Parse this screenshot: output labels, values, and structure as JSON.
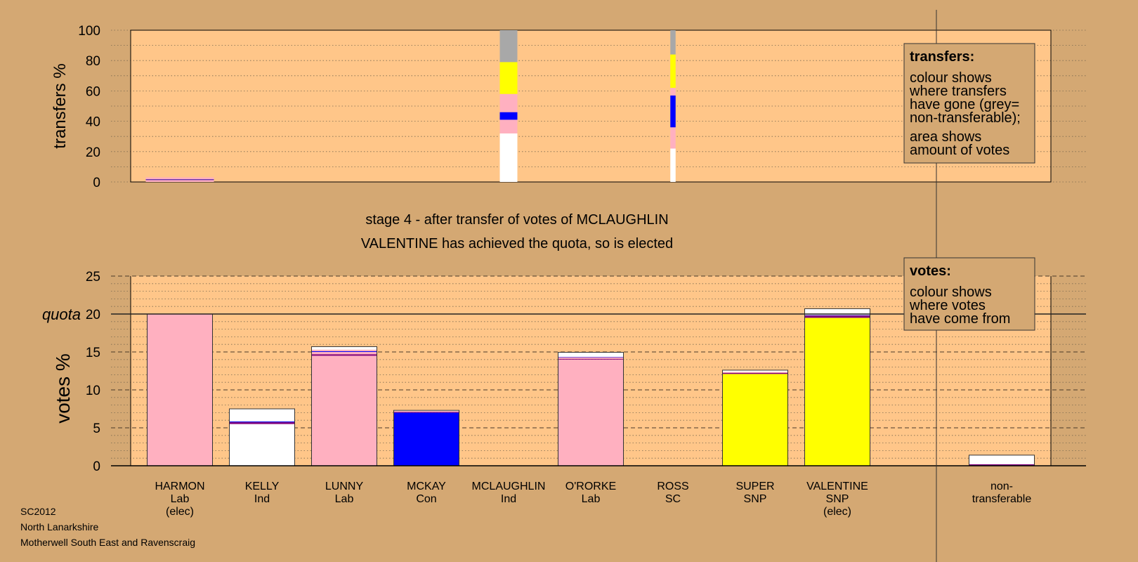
{
  "colors": {
    "background": "#D4A873",
    "plot_background": "#FFC689",
    "Lab": "#FFB0C0",
    "Ind": "#FFFFFF",
    "Con": "#0000FF",
    "SNP": "#FFFF00",
    "SC": "#800080",
    "non_transferable": "#A8A8A8"
  },
  "footer": {
    "line1": "SC2012",
    "line2": "North Lanarkshire",
    "line3": "Motherwell South East and Ravenscraig"
  },
  "stage": {
    "title": "stage 4 - after transfer of votes of MCLAUGHLIN",
    "subtitle": "VALENTINE has achieved the quota, so is elected"
  },
  "legend_transfers": {
    "heading": "transfers:",
    "lines1": [
      "colour shows",
      "where transfers",
      "have gone (grey=",
      "non-transferable);"
    ],
    "lines2": [
      "area shows",
      "amount of votes"
    ]
  },
  "legend_votes": {
    "heading": "votes:",
    "lines1": [
      "colour shows",
      "where votes",
      "have come from"
    ]
  },
  "chart_data": [
    {
      "type": "bar",
      "name": "transfers",
      "ylabel": "transfers %",
      "ylim": [
        0,
        100
      ],
      "yticks": [
        0,
        20,
        40,
        60,
        80,
        100
      ],
      "grid": "dotted",
      "columns": [
        {
          "candidate": "HARMON",
          "width": 2,
          "segments": [
            {
              "party": "Lab",
              "from": 0,
              "to": 3
            }
          ]
        },
        {
          "candidate": "MCLAUGHLIN",
          "width": 1,
          "segments": [
            {
              "party": "Ind",
              "from": 0,
              "to": 32
            },
            {
              "party": "Lab",
              "from": 32,
              "to": 41
            },
            {
              "party": "Con",
              "from": 41,
              "to": 46
            },
            {
              "party": "Lab",
              "from": 46,
              "to": 58
            },
            {
              "party": "SNP",
              "from": 58,
              "to": 79
            },
            {
              "party": "non_transferable",
              "from": 79,
              "to": 100
            }
          ]
        },
        {
          "candidate": "ROSS",
          "width": 0.3,
          "segments": [
            {
              "party": "Ind",
              "from": 0,
              "to": 22
            },
            {
              "party": "Lab",
              "from": 22,
              "to": 36
            },
            {
              "party": "Con",
              "from": 36,
              "to": 57
            },
            {
              "party": "Lab",
              "from": 57,
              "to": 62
            },
            {
              "party": "SNP",
              "from": 62,
              "to": 84
            },
            {
              "party": "non_transferable",
              "from": 84,
              "to": 100
            }
          ]
        }
      ]
    },
    {
      "type": "bar",
      "name": "votes",
      "ylabel": "votes %",
      "ylim": [
        0,
        25
      ],
      "yticks": [
        0,
        5,
        10,
        15,
        20,
        25
      ],
      "quota_label": "quota",
      "quota": 20,
      "grid": "dotted",
      "categories": [
        {
          "name": "HARMON",
          "party": "Lab",
          "elected": "(elec)"
        },
        {
          "name": "KELLY",
          "party": "Ind",
          "elected": ""
        },
        {
          "name": "LUNNY",
          "party": "Lab",
          "elected": ""
        },
        {
          "name": "MCKAY",
          "party": "Con",
          "elected": ""
        },
        {
          "name": "MCLAUGHLIN",
          "party": "Ind",
          "elected": ""
        },
        {
          "name": "O'RORKE",
          "party": "Lab",
          "elected": ""
        },
        {
          "name": "ROSS",
          "party": "SC",
          "elected": ""
        },
        {
          "name": "SUPER",
          "party": "SNP",
          "elected": ""
        },
        {
          "name": "VALENTINE",
          "party": "SNP",
          "elected": "(elec)"
        }
      ],
      "nontransferable_label": [
        "non-",
        "transferable"
      ],
      "bars": [
        [
          {
            "party": "Lab",
            "value": 20.0
          }
        ],
        [
          {
            "party": "Ind",
            "value": 5.5
          },
          {
            "party": "SC",
            "value": 0.25
          },
          {
            "party": "Con",
            "value": 0.1
          },
          {
            "party": "Ind",
            "value": 1.65
          }
        ],
        [
          {
            "party": "Lab",
            "value": 14.5
          },
          {
            "party": "SC",
            "value": 0.2
          },
          {
            "party": "Lab",
            "value": 0.3
          },
          {
            "party": "Con",
            "value": 0.1
          },
          {
            "party": "Lab",
            "value": 0.2
          },
          {
            "party": "Ind",
            "value": 0.4
          }
        ],
        [
          {
            "party": "Con",
            "value": 7.0
          },
          {
            "party": "SC",
            "value": 0.1
          },
          {
            "party": "Lab",
            "value": 0.1
          },
          {
            "party": "Ind",
            "value": 0.1
          }
        ],
        [],
        [
          {
            "party": "Lab",
            "value": 14.0
          },
          {
            "party": "SC",
            "value": 0.1
          },
          {
            "party": "Lab",
            "value": 0.2
          },
          {
            "party": "Con",
            "value": 0.05
          },
          {
            "party": "Ind",
            "value": 0.6
          }
        ],
        [],
        [
          {
            "party": "SNP",
            "value": 12.1
          },
          {
            "party": "SC",
            "value": 0.15
          },
          {
            "party": "Lab",
            "value": 0.1
          },
          {
            "party": "Ind",
            "value": 0.25
          }
        ],
        [
          {
            "party": "SNP",
            "value": 19.5
          },
          {
            "party": "SC",
            "value": 0.3
          },
          {
            "party": "Con",
            "value": 0.05
          },
          {
            "party": "Ind",
            "value": 0.85
          }
        ]
      ],
      "nontransferable": [
        {
          "party": "SC",
          "value": 0.2
        },
        {
          "party": "Ind",
          "value": 1.2
        }
      ]
    }
  ]
}
